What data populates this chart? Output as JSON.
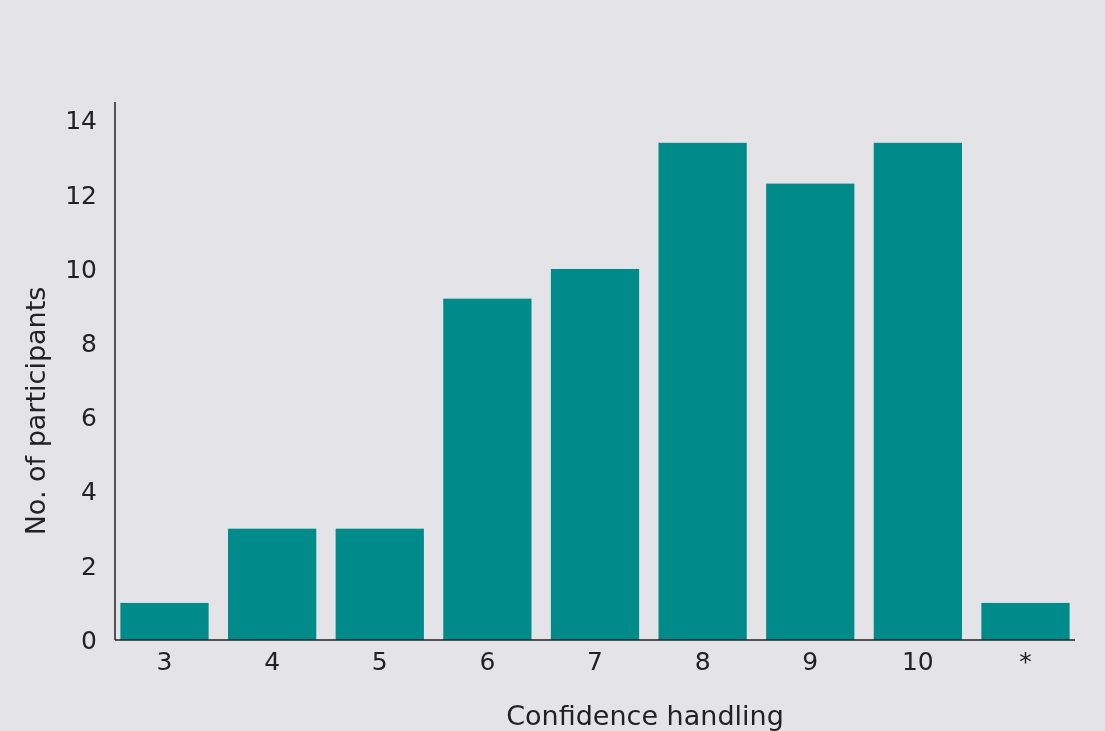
{
  "chart_data": {
    "type": "bar",
    "xlabel": "Confidence handling",
    "ylabel": "No. of participants",
    "categories": [
      "3",
      "4",
      "5",
      "6",
      "7",
      "8",
      "9",
      "10",
      "*"
    ],
    "values": [
      1,
      3,
      3,
      9.2,
      10,
      13.4,
      12.3,
      13.4,
      1
    ],
    "color": "#008b8b",
    "ylim": [
      0,
      14.5
    ],
    "yticks": [
      0,
      2,
      4,
      6,
      8,
      10,
      12,
      14
    ],
    "grid": false
  }
}
